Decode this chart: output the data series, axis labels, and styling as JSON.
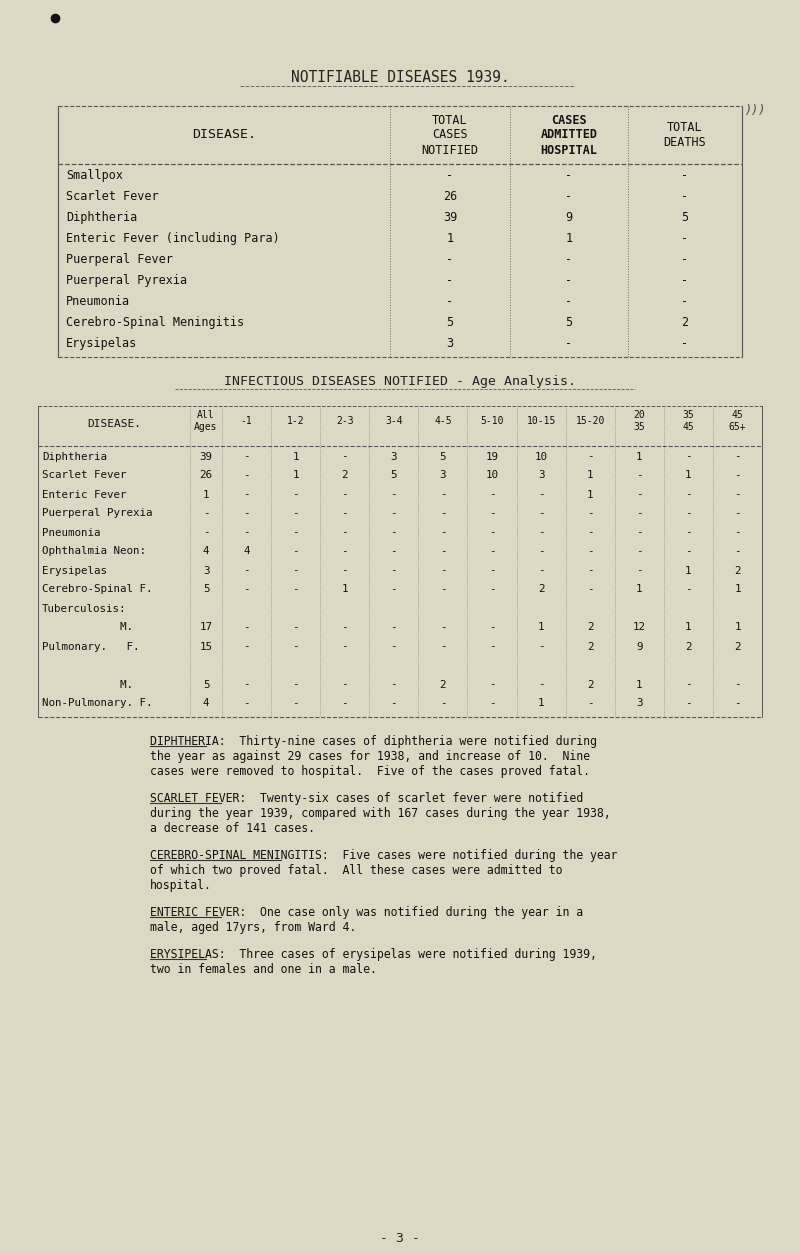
{
  "bg_color": "#ddd8c4",
  "title": "NOTIFIABLE DISEASES 1939.",
  "table2_title": "INFECTIOUS DISEASES NOTIFIED - Age Analysis.",
  "page_number": "- 3 -",
  "table1_headers": [
    "DISEASE.",
    "TOTAL\nCASES\nNOTIFIED",
    "CASES\nADMITTED\nHOSPITAL",
    "TOTAL\nDEATHS"
  ],
  "table1_rows": [
    [
      "Smallpox",
      "-",
      "-",
      "-"
    ],
    [
      "Scarlet Fever",
      "26",
      "-",
      "-"
    ],
    [
      "Diphtheria",
      "39",
      "9",
      "5"
    ],
    [
      "Enteric Fever (including Para)",
      "1",
      "1",
      "-"
    ],
    [
      "Puerperal Fever",
      "-",
      "-",
      "-"
    ],
    [
      "Puerperal Pyrexia",
      "-",
      "-",
      "-"
    ],
    [
      "Pneumonia",
      "-",
      "-",
      "-"
    ],
    [
      "Cerebro-Spinal Meningitis",
      "5",
      "5",
      "2"
    ],
    [
      "Erysipelas",
      "3",
      "-",
      "-"
    ]
  ],
  "table2_rows": [
    [
      "Diphtheria",
      "39",
      "-",
      "1",
      "-",
      "3",
      "5",
      "19",
      "10",
      "-",
      "1",
      "-",
      "-"
    ],
    [
      "Scarlet Fever",
      "26",
      "-",
      "1",
      "2",
      "5",
      "3",
      "10",
      "3",
      "1",
      "-",
      "1",
      "-"
    ],
    [
      "Enteric Fever",
      "1",
      "-",
      "-",
      "-",
      "-",
      "-",
      "-",
      "-",
      "1",
      "-",
      "-",
      "-"
    ],
    [
      "Puerperal Pyrexia",
      "-",
      "-",
      "-",
      "-",
      "-",
      "-",
      "-",
      "-",
      "-",
      "-",
      "-",
      "-"
    ],
    [
      "Pneumonia",
      "-",
      "-",
      "-",
      "-",
      "-",
      "-",
      "-",
      "-",
      "-",
      "-",
      "-",
      "-"
    ],
    [
      "Ophthalmia Neon:",
      "4",
      "4",
      "-",
      "-",
      "-",
      "-",
      "-",
      "-",
      "-",
      "-",
      "-",
      "-"
    ],
    [
      "Erysipelas",
      "3",
      "-",
      "-",
      "-",
      "-",
      "-",
      "-",
      "-",
      "-",
      "-",
      "1",
      "2"
    ],
    [
      "Cerebro-Spinal F.",
      "5",
      "-",
      "-",
      "1",
      "-",
      "-",
      "-",
      "2",
      "-",
      "1",
      "-",
      "1"
    ],
    [
      "Tuberculosis:",
      "",
      "",
      "",
      "",
      "",
      "",
      "",
      "",
      "",
      "",
      "",
      ""
    ],
    [
      "            M.",
      "17",
      "-",
      "-",
      "-",
      "-",
      "-",
      "-",
      "1",
      "2",
      "12",
      "1",
      "1"
    ],
    [
      "Pulmonary.   F.",
      "15",
      "-",
      "-",
      "-",
      "-",
      "-",
      "-",
      "-",
      "2",
      "9",
      "2",
      "2"
    ],
    [
      "",
      "",
      "",
      "",
      "",
      "",
      "",
      "",
      "",
      "",
      "",
      "",
      ""
    ],
    [
      "            M.",
      "5",
      "-",
      "-",
      "-",
      "-",
      "2",
      "-",
      "-",
      "2",
      "1",
      "-",
      "-"
    ],
    [
      "Non-Pulmonary. F.",
      "4",
      "-",
      "-",
      "-",
      "-",
      "-",
      "-",
      "1",
      "-",
      "3",
      "-",
      "-"
    ]
  ],
  "paragraphs": [
    {
      "heading": "DIPHTHERIA:",
      "text": "  Thirty-nine cases of diphtheria were notified during the year as against 29 cases for\n1938, and increase of 10.  Nine cases were removed to hospital.  Five of the cases proved fatal."
    },
    {
      "heading": "SCARLET FEVER:",
      "text": "  Twenty-six cases of scarlet fever were notified during the year 1939, compared with\n167 cases during the year 1938, a decrease of 141 cases."
    },
    {
      "heading": "CEREBRO-SPINAL MENINGITIS:",
      "text": "  Five cases were notified during the year of which two proved fatal.  All these\ncases were admitted to hospital."
    },
    {
      "heading": "ENTERIC FEVER:",
      "text": "  One case only was notified during the year in a male, aged 17yrs, from Ward 4."
    },
    {
      "heading": "ERYSIPELAS:",
      "text": "  Three cases of erysipelas were notified during 1939, two in females and one in a male."
    }
  ]
}
